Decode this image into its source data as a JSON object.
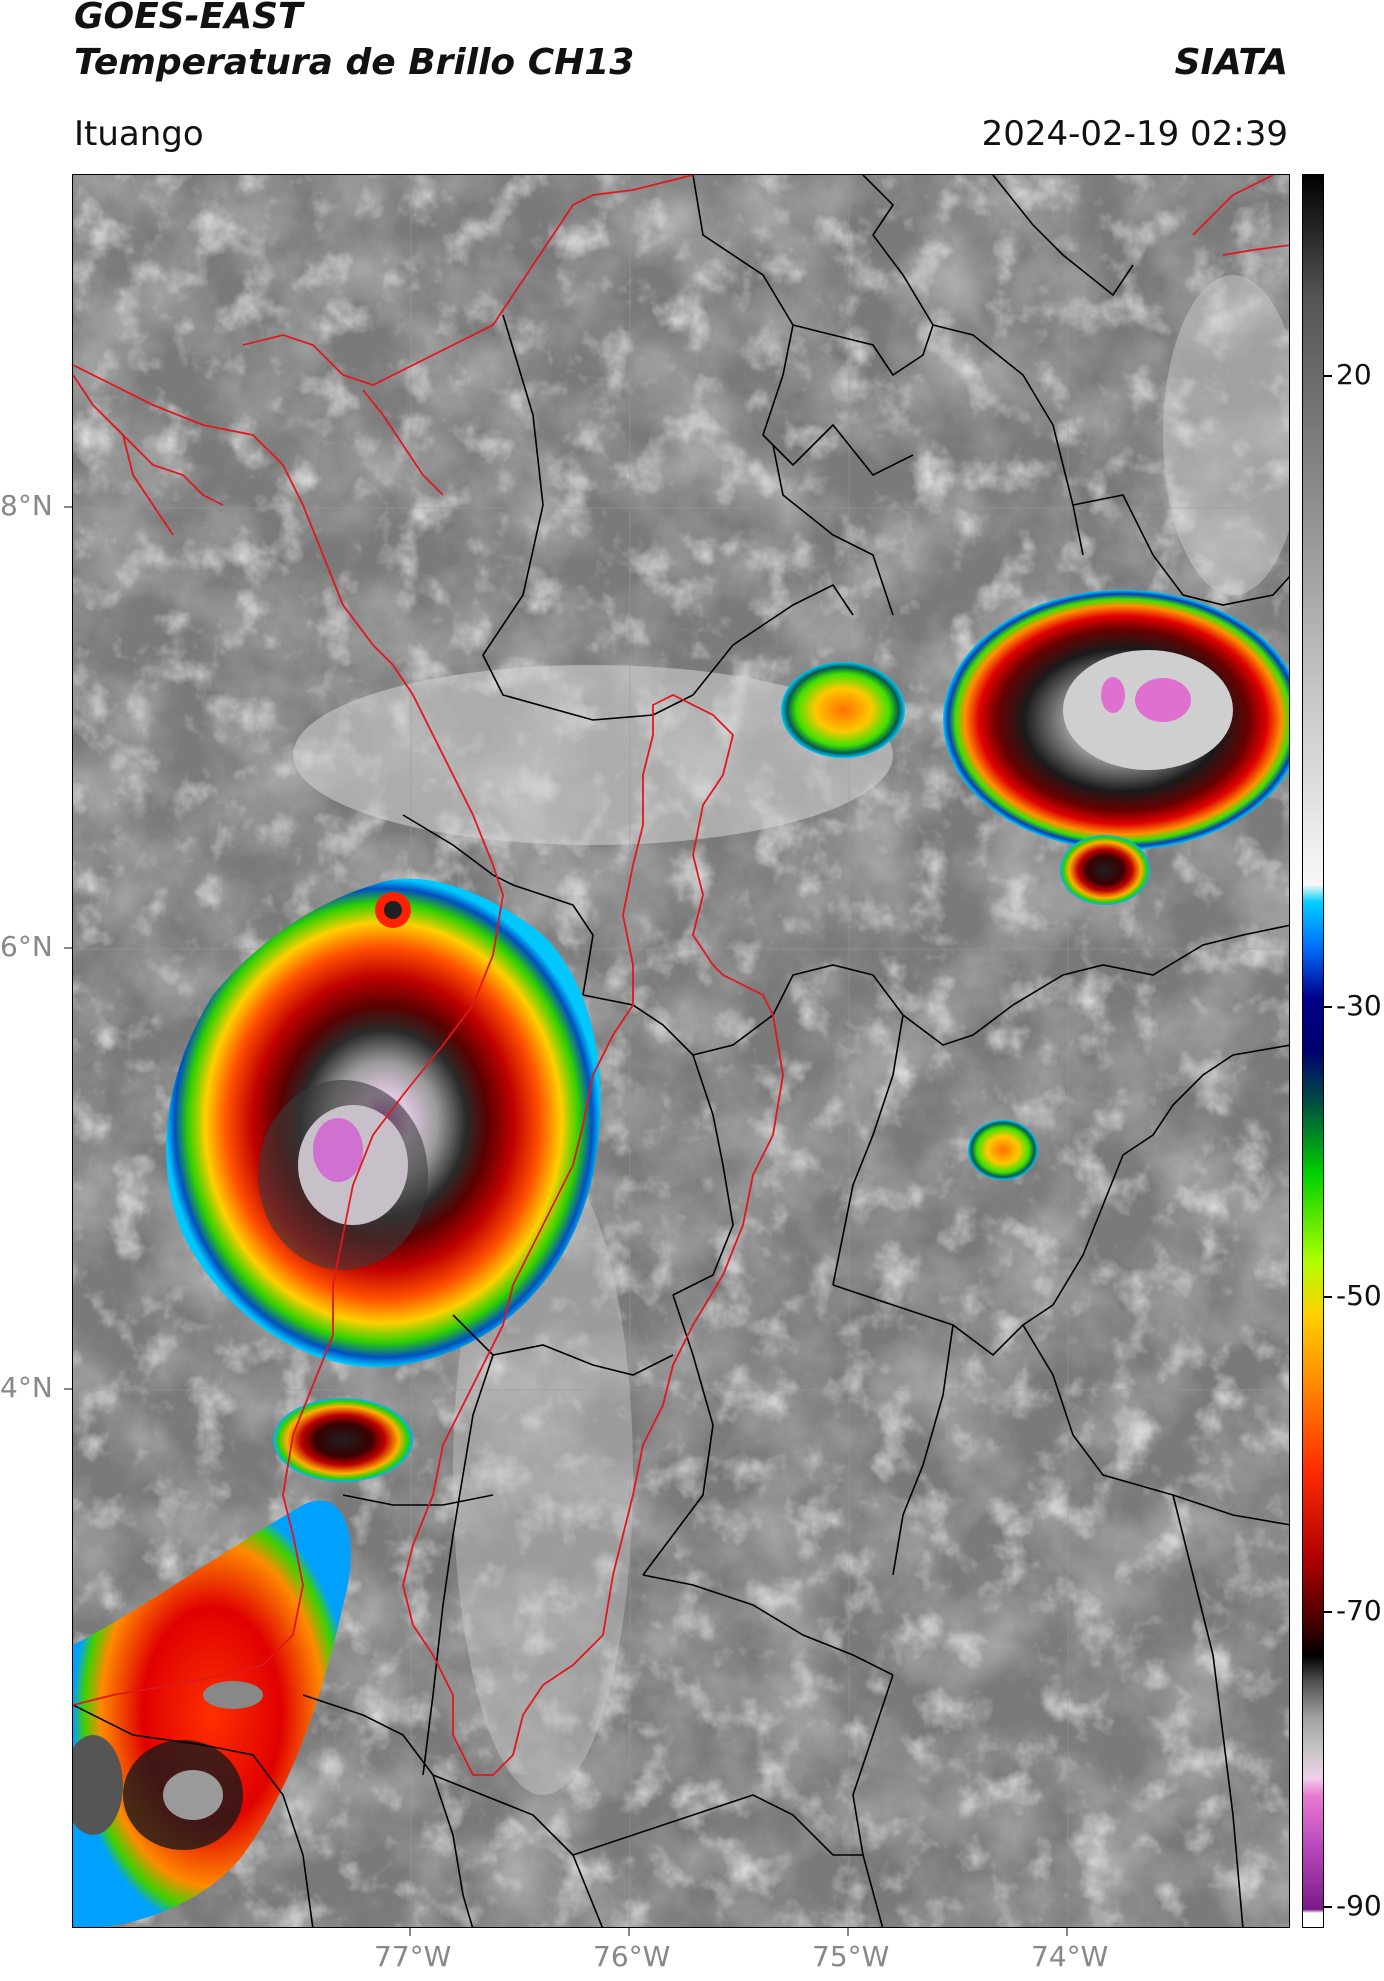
{
  "header": {
    "title_line1": "GOES-EAST",
    "title_line2": "Temperatura de Brillo CH13",
    "organization": "SIATA",
    "location": "Ituango",
    "timestamp": "2024-02-19 02:39"
  },
  "map": {
    "lat_labels": [
      "8°N",
      "6°N",
      "4°N"
    ],
    "lon_labels": [
      "77°W",
      "76°W",
      "75°W",
      "74°W"
    ],
    "colors": {
      "background_gray": "#7a7a7a",
      "country_border": "#e0171f",
      "admin_border": "#000000"
    }
  },
  "colorbar": {
    "tick_labels": [
      "20",
      "-30",
      "-50",
      "-70",
      "-90"
    ],
    "colors": [
      "#ffffff",
      "#7a1a8a",
      "#c04fc0",
      "#e87ad0",
      "#d8d8d8",
      "#a0a0a0",
      "#505050",
      "#000000",
      "#3a0000",
      "#b00000",
      "#ff2a00",
      "#ff8a00",
      "#ffd000",
      "#b0ff00",
      "#00d000",
      "#005040",
      "#00008a",
      "#0070ff",
      "#00d0ff",
      "#f0f0f0",
      "#9a9a9a",
      "#555555",
      "#000000"
    ]
  }
}
